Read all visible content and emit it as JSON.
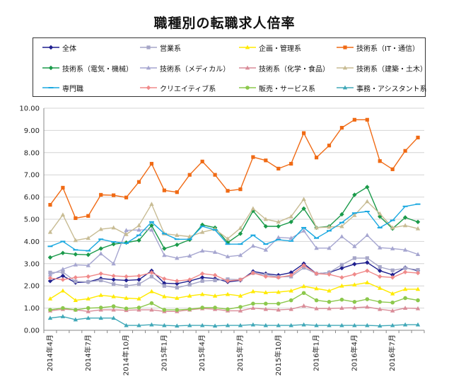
{
  "chart_data": {
    "type": "line",
    "title": "職種別の転職求人倍率",
    "xlabel": "",
    "ylabel": "",
    "ylim": [
      0,
      10
    ],
    "ytick_labels": [
      "0.00",
      "1.00",
      "2.00",
      "3.00",
      "4.00",
      "5.00",
      "6.00",
      "7.00",
      "8.00",
      "9.00",
      "10.00"
    ],
    "xtick_labels": [
      "2014年4月",
      "2014年7月",
      "2014年10月",
      "2015年1月",
      "2015年4月",
      "2015年7月",
      "2015年10月",
      "2016年1月",
      "2016年4月",
      "2016年7月"
    ],
    "xtick_positions": [
      0,
      3,
      6,
      9,
      12,
      15,
      18,
      21,
      24,
      27
    ],
    "grid": true,
    "legend": "top",
    "x": [
      "2014-04",
      "2014-05",
      "2014-06",
      "2014-07",
      "2014-08",
      "2014-09",
      "2014-10",
      "2014-11",
      "2014-12",
      "2015-01",
      "2015-02",
      "2015-03",
      "2015-04",
      "2015-05",
      "2015-06",
      "2015-07",
      "2015-08",
      "2015-09",
      "2015-10",
      "2015-11",
      "2015-12",
      "2016-01",
      "2016-02",
      "2016-03",
      "2016-04",
      "2016-05",
      "2016-06",
      "2016-07",
      "2016-08",
      "2016-09"
    ],
    "series": [
      {
        "name": "全体",
        "color": "#1f1f8f",
        "marker": "diamond",
        "values": [
          2.22,
          2.45,
          2.15,
          2.18,
          2.33,
          2.28,
          2.25,
          2.28,
          2.68,
          2.12,
          2.1,
          2.22,
          2.38,
          2.33,
          2.18,
          2.25,
          2.65,
          2.55,
          2.48,
          2.6,
          3.0,
          2.55,
          2.6,
          2.8,
          2.98,
          3.05,
          2.68,
          2.5,
          2.82,
          2.68
        ]
      },
      {
        "name": "営業系",
        "color": "#a6a6c8",
        "marker": "square",
        "values": [
          2.6,
          2.62,
          2.2,
          2.18,
          2.25,
          2.08,
          2.0,
          2.08,
          2.42,
          2.0,
          1.92,
          2.05,
          2.22,
          2.25,
          2.3,
          2.28,
          2.58,
          2.5,
          2.4,
          2.42,
          2.82,
          2.55,
          2.6,
          2.95,
          3.25,
          3.25,
          2.85,
          2.7,
          2.8,
          2.72
        ]
      },
      {
        "name": "企画・管理系",
        "color": "#ffea00",
        "marker": "triangle",
        "values": [
          1.42,
          1.78,
          1.35,
          1.42,
          1.58,
          1.52,
          1.45,
          1.42,
          1.75,
          1.52,
          1.45,
          1.55,
          1.62,
          1.55,
          1.62,
          1.55,
          1.75,
          1.7,
          1.72,
          1.78,
          1.98,
          1.88,
          1.78,
          2.0,
          2.05,
          2.15,
          1.9,
          1.65,
          1.85,
          1.85
        ]
      },
      {
        "name": "技術系（IT・通信）",
        "color": "#f06a14",
        "marker": "square",
        "values": [
          5.65,
          6.42,
          5.05,
          5.15,
          6.1,
          6.08,
          5.98,
          6.68,
          7.5,
          6.3,
          6.22,
          7.0,
          7.6,
          7.0,
          6.28,
          6.35,
          7.8,
          7.65,
          7.28,
          7.5,
          8.88,
          7.78,
          8.32,
          9.12,
          9.48,
          9.48,
          7.62,
          7.25,
          8.08,
          8.68
        ]
      },
      {
        "name": "技術系（電気・機械）",
        "color": "#1a9a4a",
        "marker": "diamond",
        "values": [
          3.28,
          3.48,
          3.42,
          3.4,
          3.68,
          3.88,
          3.95,
          4.05,
          4.72,
          3.68,
          3.85,
          4.08,
          4.75,
          4.62,
          3.95,
          4.35,
          5.38,
          4.68,
          4.68,
          4.88,
          5.48,
          4.62,
          4.68,
          5.22,
          6.1,
          6.45,
          5.12,
          4.58,
          5.08,
          4.88
        ]
      },
      {
        "name": "技術系（メディカル）",
        "color": "#a6a6d0",
        "marker": "triangle",
        "values": [
          2.5,
          2.75,
          2.95,
          2.92,
          3.45,
          3.0,
          4.5,
          4.52,
          4.52,
          3.38,
          3.25,
          3.35,
          3.58,
          3.52,
          3.32,
          3.38,
          3.8,
          3.62,
          4.18,
          4.15,
          4.48,
          3.7,
          3.7,
          4.22,
          3.78,
          4.28,
          3.72,
          3.68,
          3.62,
          3.42
        ]
      },
      {
        "name": "技術系（化学・食品）",
        "color": "#d98c98",
        "marker": "triangle",
        "values": [
          0.88,
          0.95,
          0.92,
          0.85,
          0.92,
          0.92,
          0.9,
          0.92,
          0.92,
          0.85,
          0.85,
          0.92,
          0.98,
          0.95,
          0.88,
          0.88,
          1.0,
          0.95,
          0.92,
          0.95,
          1.1,
          0.98,
          0.98,
          1.0,
          1.02,
          1.05,
          0.95,
          0.88,
          1.0,
          0.98
        ]
      },
      {
        "name": "技術系（建築・土木）",
        "color": "#c8bc94",
        "marker": "triangle",
        "values": [
          4.42,
          5.2,
          4.05,
          4.15,
          4.55,
          4.62,
          4.32,
          4.72,
          5.68,
          4.35,
          4.28,
          4.22,
          4.42,
          4.55,
          4.12,
          4.6,
          5.48,
          5.0,
          4.88,
          5.12,
          5.9,
          4.62,
          4.65,
          4.68,
          5.18,
          5.8,
          5.25,
          4.62,
          4.72,
          4.58
        ]
      },
      {
        "name": "専門職",
        "color": "#1aa8e0",
        "marker": "dash",
        "values": [
          3.78,
          4.0,
          3.62,
          3.58,
          4.1,
          3.98,
          3.92,
          4.28,
          4.88,
          4.35,
          4.1,
          4.1,
          4.68,
          4.52,
          3.88,
          3.88,
          4.28,
          3.88,
          4.08,
          4.02,
          4.62,
          4.15,
          4.48,
          4.85,
          5.28,
          5.35,
          4.62,
          4.95,
          5.58,
          5.68
        ]
      },
      {
        "name": "クリエイティブ系",
        "color": "#f08a8a",
        "marker": "diamond",
        "values": [
          2.35,
          2.28,
          2.38,
          2.42,
          2.55,
          2.45,
          2.42,
          2.45,
          2.6,
          2.32,
          2.22,
          2.28,
          2.55,
          2.48,
          2.22,
          2.28,
          2.58,
          2.42,
          2.38,
          2.48,
          2.92,
          2.55,
          2.52,
          2.38,
          2.52,
          2.68,
          2.42,
          2.38,
          2.62,
          2.58
        ]
      },
      {
        "name": "販売・サービス系",
        "color": "#8cc84c",
        "marker": "circle",
        "values": [
          0.92,
          1.0,
          0.92,
          1.0,
          1.02,
          1.08,
          0.98,
          1.02,
          1.22,
          0.92,
          0.92,
          0.95,
          1.02,
          1.02,
          0.95,
          1.05,
          1.2,
          1.2,
          1.2,
          1.35,
          1.68,
          1.35,
          1.28,
          1.38,
          1.28,
          1.4,
          1.28,
          1.25,
          1.45,
          1.35
        ]
      },
      {
        "name": "事務・アシスタント系",
        "color": "#40a8b8",
        "marker": "triangle",
        "values": [
          0.55,
          0.62,
          0.48,
          0.55,
          0.55,
          0.55,
          0.22,
          0.22,
          0.25,
          0.22,
          0.2,
          0.22,
          0.22,
          0.2,
          0.22,
          0.22,
          0.25,
          0.22,
          0.22,
          0.22,
          0.25,
          0.22,
          0.22,
          0.22,
          0.22,
          0.22,
          0.2,
          0.22,
          0.25,
          0.25
        ]
      }
    ]
  }
}
